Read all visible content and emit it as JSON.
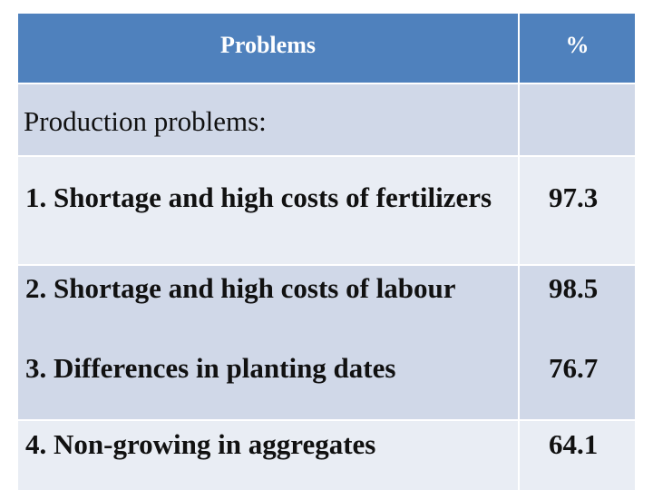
{
  "table": {
    "header": {
      "problems": "Problems",
      "percent": "%"
    },
    "section_label": "Production problems:",
    "rows": [
      {
        "problem": "1. Shortage and high costs of fertilizers",
        "percent": "97.3"
      },
      {
        "problem": "2. Shortage and high costs of labour",
        "percent": "98.5"
      },
      {
        "problem": "3. Differences in planting dates",
        "percent": "76.7"
      },
      {
        "problem": "4. Non-growing in aggregates",
        "percent": "64.1"
      }
    ]
  },
  "colors": {
    "header_bg": "#4f81bd",
    "row_dark": "#d0d8e8",
    "row_light": "#e9edf4"
  }
}
